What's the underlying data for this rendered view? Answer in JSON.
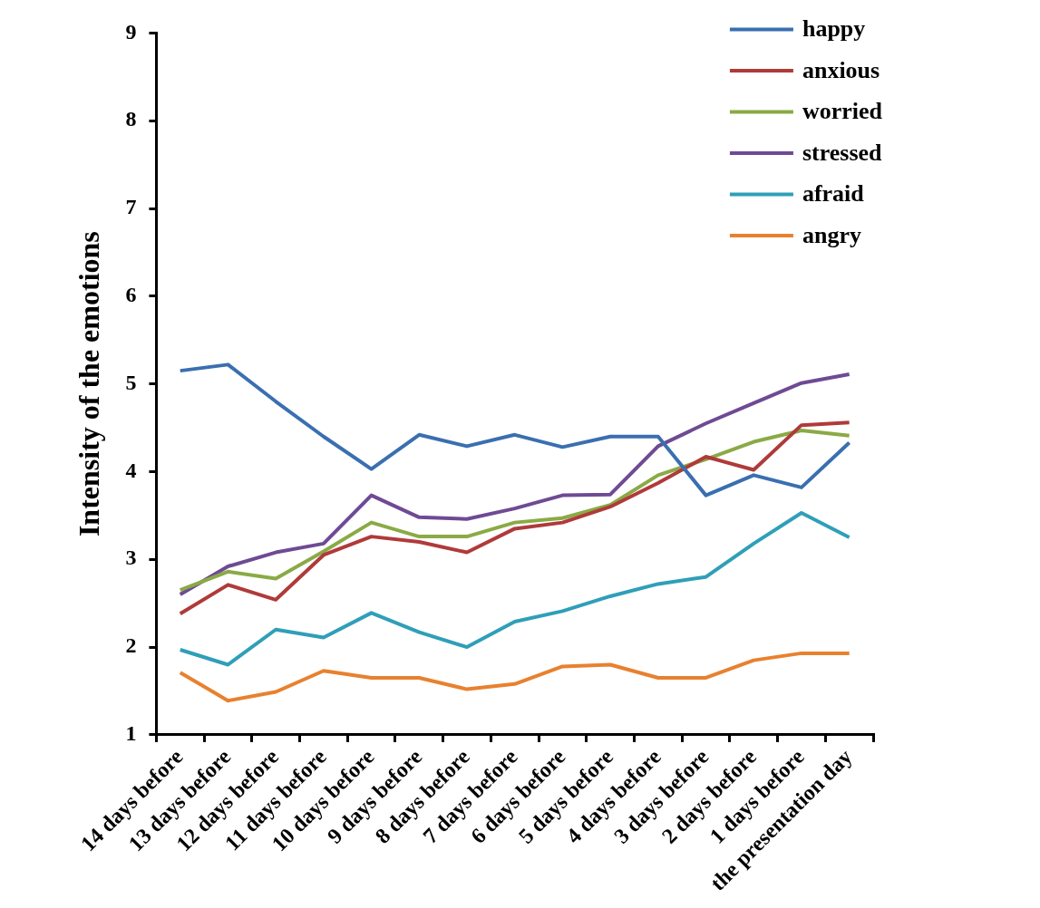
{
  "chart_data": {
    "type": "line",
    "ylabel": "Intensity of the emotions",
    "categories": [
      "14 days before",
      "13 days before",
      "12 days before",
      "11 days before",
      "10 days before",
      "9 days before",
      "8 days before",
      "7 days before",
      "6 days before",
      "5 days before",
      "4 days before",
      "3 days before",
      "2 days before",
      "1 days before",
      "the presentation day"
    ],
    "ylim": [
      1,
      9
    ],
    "yticks": [
      1,
      2,
      3,
      4,
      5,
      6,
      7,
      8,
      9
    ],
    "grid": false,
    "legend": "top right",
    "marker": "none",
    "line_style": "solid",
    "series": [
      {
        "name": "happy",
        "color": "#3a6fb0",
        "values": [
          5.15,
          5.22,
          4.8,
          4.4,
          4.03,
          4.42,
          4.29,
          4.42,
          4.28,
          4.4,
          4.4,
          3.73,
          3.96,
          3.82,
          4.33
        ]
      },
      {
        "name": "anxious",
        "color": "#b03a3a",
        "values": [
          2.38,
          2.71,
          2.54,
          3.05,
          3.26,
          3.2,
          3.08,
          3.35,
          3.42,
          3.6,
          3.87,
          4.17,
          4.02,
          4.53,
          4.56
        ]
      },
      {
        "name": "worried",
        "color": "#8aaa45",
        "values": [
          2.65,
          2.86,
          2.78,
          3.09,
          3.42,
          3.26,
          3.26,
          3.42,
          3.47,
          3.62,
          3.96,
          4.14,
          4.34,
          4.47,
          4.41
        ]
      },
      {
        "name": "stressed",
        "color": "#6f4a94",
        "values": [
          2.6,
          2.92,
          3.08,
          3.18,
          3.73,
          3.48,
          3.46,
          3.58,
          3.73,
          3.74,
          4.29,
          4.55,
          4.78,
          5.01,
          5.11
        ]
      },
      {
        "name": "afraid",
        "color": "#2f9fb8",
        "values": [
          1.97,
          1.8,
          2.2,
          2.11,
          2.39,
          2.17,
          2.0,
          2.29,
          2.41,
          2.58,
          2.72,
          2.8,
          3.18,
          3.53,
          3.25
        ]
      },
      {
        "name": "angry",
        "color": "#e8812f",
        "values": [
          1.71,
          1.39,
          1.49,
          1.73,
          1.65,
          1.65,
          1.52,
          1.58,
          1.78,
          1.8,
          1.65,
          1.65,
          1.85,
          1.93,
          1.93
        ]
      }
    ]
  }
}
